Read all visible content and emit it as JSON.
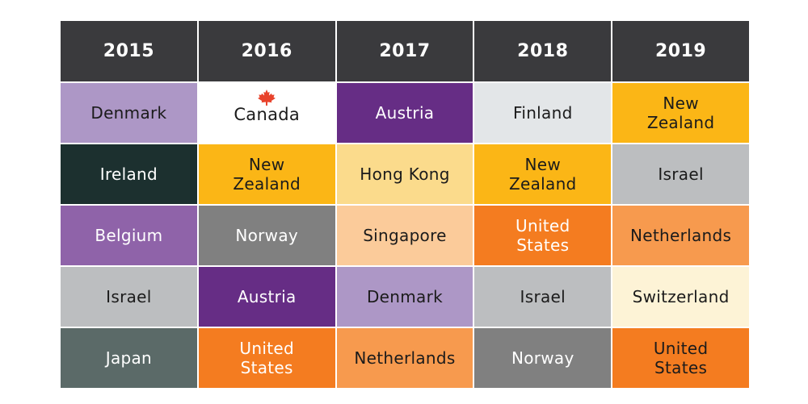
{
  "years": [
    "2015",
    "2016",
    "2017",
    "2018",
    "2019"
  ],
  "rows": [
    [
      {
        "text": "Denmark",
        "bg": "#ad97c6",
        "fg": "#1b1b1b"
      },
      {
        "text": "Canada",
        "bg": "#ffffff",
        "fg": "#1b1b1b",
        "icon": "maple-leaf-icon"
      },
      {
        "text": "Austria",
        "bg": "#662d85",
        "fg": "#ffffff"
      },
      {
        "text": "Finland",
        "bg": "#e3e6e8",
        "fg": "#1b1b1b"
      },
      {
        "text": "New Zealand",
        "bg": "#fbb616",
        "fg": "#1b1b1b"
      }
    ],
    [
      {
        "text": "Ireland",
        "bg": "#1c302f",
        "fg": "#ffffff"
      },
      {
        "text": "New Zealand",
        "bg": "#fbb616",
        "fg": "#1b1b1b"
      },
      {
        "text": "Hong Kong",
        "bg": "#fbdb8c",
        "fg": "#1b1b1b"
      },
      {
        "text": "New Zealand",
        "bg": "#fbb616",
        "fg": "#1b1b1b"
      },
      {
        "text": "Israel",
        "bg": "#bcbec0",
        "fg": "#1b1b1b"
      }
    ],
    [
      {
        "text": "Belgium",
        "bg": "#8f63a9",
        "fg": "#ffffff"
      },
      {
        "text": "Norway",
        "bg": "#808080",
        "fg": "#ffffff"
      },
      {
        "text": "Singapore",
        "bg": "#fbcb9a",
        "fg": "#1b1b1b"
      },
      {
        "text": "United States",
        "bg": "#f47c20",
        "fg": "#ffffff"
      },
      {
        "text": "Netherlands",
        "bg": "#f79a4e",
        "fg": "#1b1b1b"
      }
    ],
    [
      {
        "text": "Israel",
        "bg": "#bcbec0",
        "fg": "#1b1b1b"
      },
      {
        "text": "Austria",
        "bg": "#662d85",
        "fg": "#ffffff"
      },
      {
        "text": "Denmark",
        "bg": "#ad97c6",
        "fg": "#1b1b1b"
      },
      {
        "text": "Israel",
        "bg": "#bcbec0",
        "fg": "#1b1b1b"
      },
      {
        "text": "Switzerland",
        "bg": "#fdf3d6",
        "fg": "#1b1b1b"
      }
    ],
    [
      {
        "text": "Japan",
        "bg": "#5b6a68",
        "fg": "#ffffff"
      },
      {
        "text": "United States",
        "bg": "#f47c20",
        "fg": "#ffffff"
      },
      {
        "text": "Netherlands",
        "bg": "#f79a4e",
        "fg": "#1b1b1b"
      },
      {
        "text": "Norway",
        "bg": "#808080",
        "fg": "#ffffff"
      },
      {
        "text": "United States",
        "bg": "#f47c20",
        "fg": "#1b1b1b"
      }
    ]
  ],
  "colors": {
    "header_bg": "#3a3a3d",
    "header_text": "#ffffff",
    "maple_leaf": "#e8422b"
  }
}
